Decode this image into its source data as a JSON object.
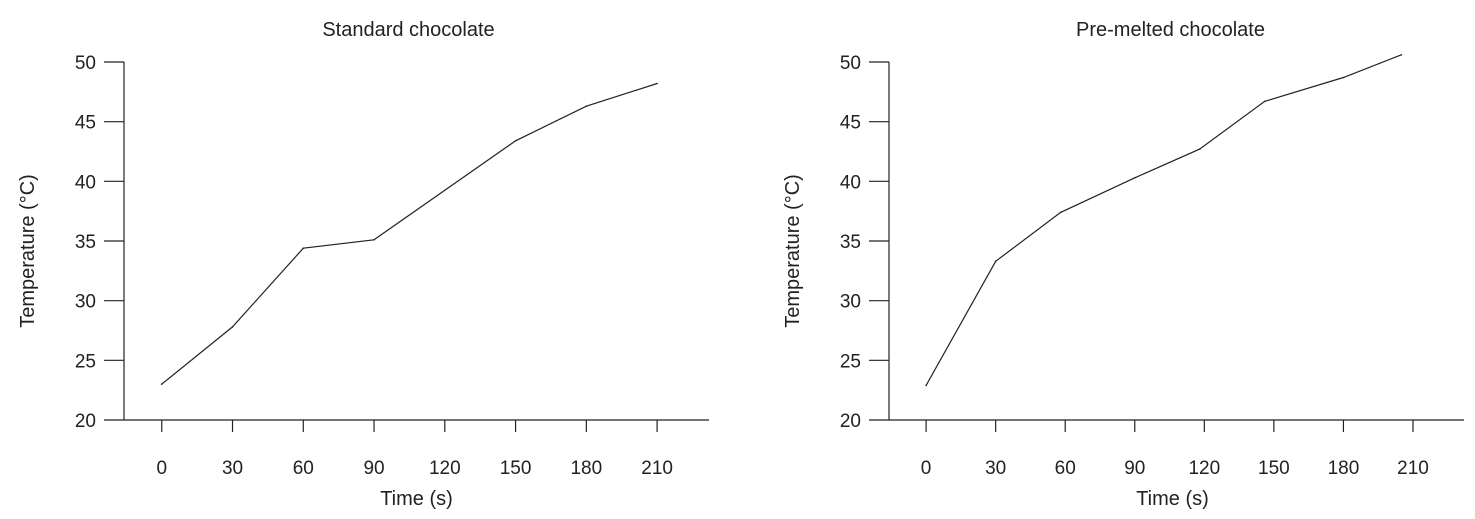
{
  "chart_data": [
    {
      "type": "line",
      "title": "Standard chocolate",
      "xlabel": "Time (s)",
      "ylabel": "Temperature (°C)",
      "x_ticks": [
        "0",
        "30",
        "60",
        "90",
        "120",
        "150",
        "180",
        "210"
      ],
      "y_ticks": [
        "20",
        "25",
        "30",
        "35",
        "40",
        "45",
        "50"
      ],
      "xlim": [
        -16,
        232
      ],
      "ylim": [
        20,
        50
      ],
      "grid": false,
      "series": [
        {
          "x": [
            0,
            30,
            60,
            90,
            150,
            180,
            210
          ],
          "y": [
            23.0,
            27.8,
            34.4,
            35.1,
            43.4,
            46.3,
            48.2
          ],
          "color": "#222222"
        }
      ]
    },
    {
      "type": "line",
      "title": "Pre-melted chocolate",
      "xlabel": "Time (s)",
      "ylabel": "Temperature (°C)",
      "x_ticks": [
        "0",
        "30",
        "60",
        "90",
        "120",
        "150",
        "180",
        "210"
      ],
      "y_ticks": [
        "20",
        "25",
        "30",
        "35",
        "40",
        "45",
        "50"
      ],
      "xlim": [
        -16,
        232
      ],
      "ylim": [
        20,
        50
      ],
      "grid": false,
      "series": [
        {
          "x": [
            0,
            30,
            58,
            90,
            118,
            146,
            180,
            205
          ],
          "y": [
            22.9,
            33.3,
            37.4,
            40.3,
            42.7,
            46.7,
            48.7,
            50.6
          ],
          "color": "#222222"
        }
      ]
    }
  ]
}
